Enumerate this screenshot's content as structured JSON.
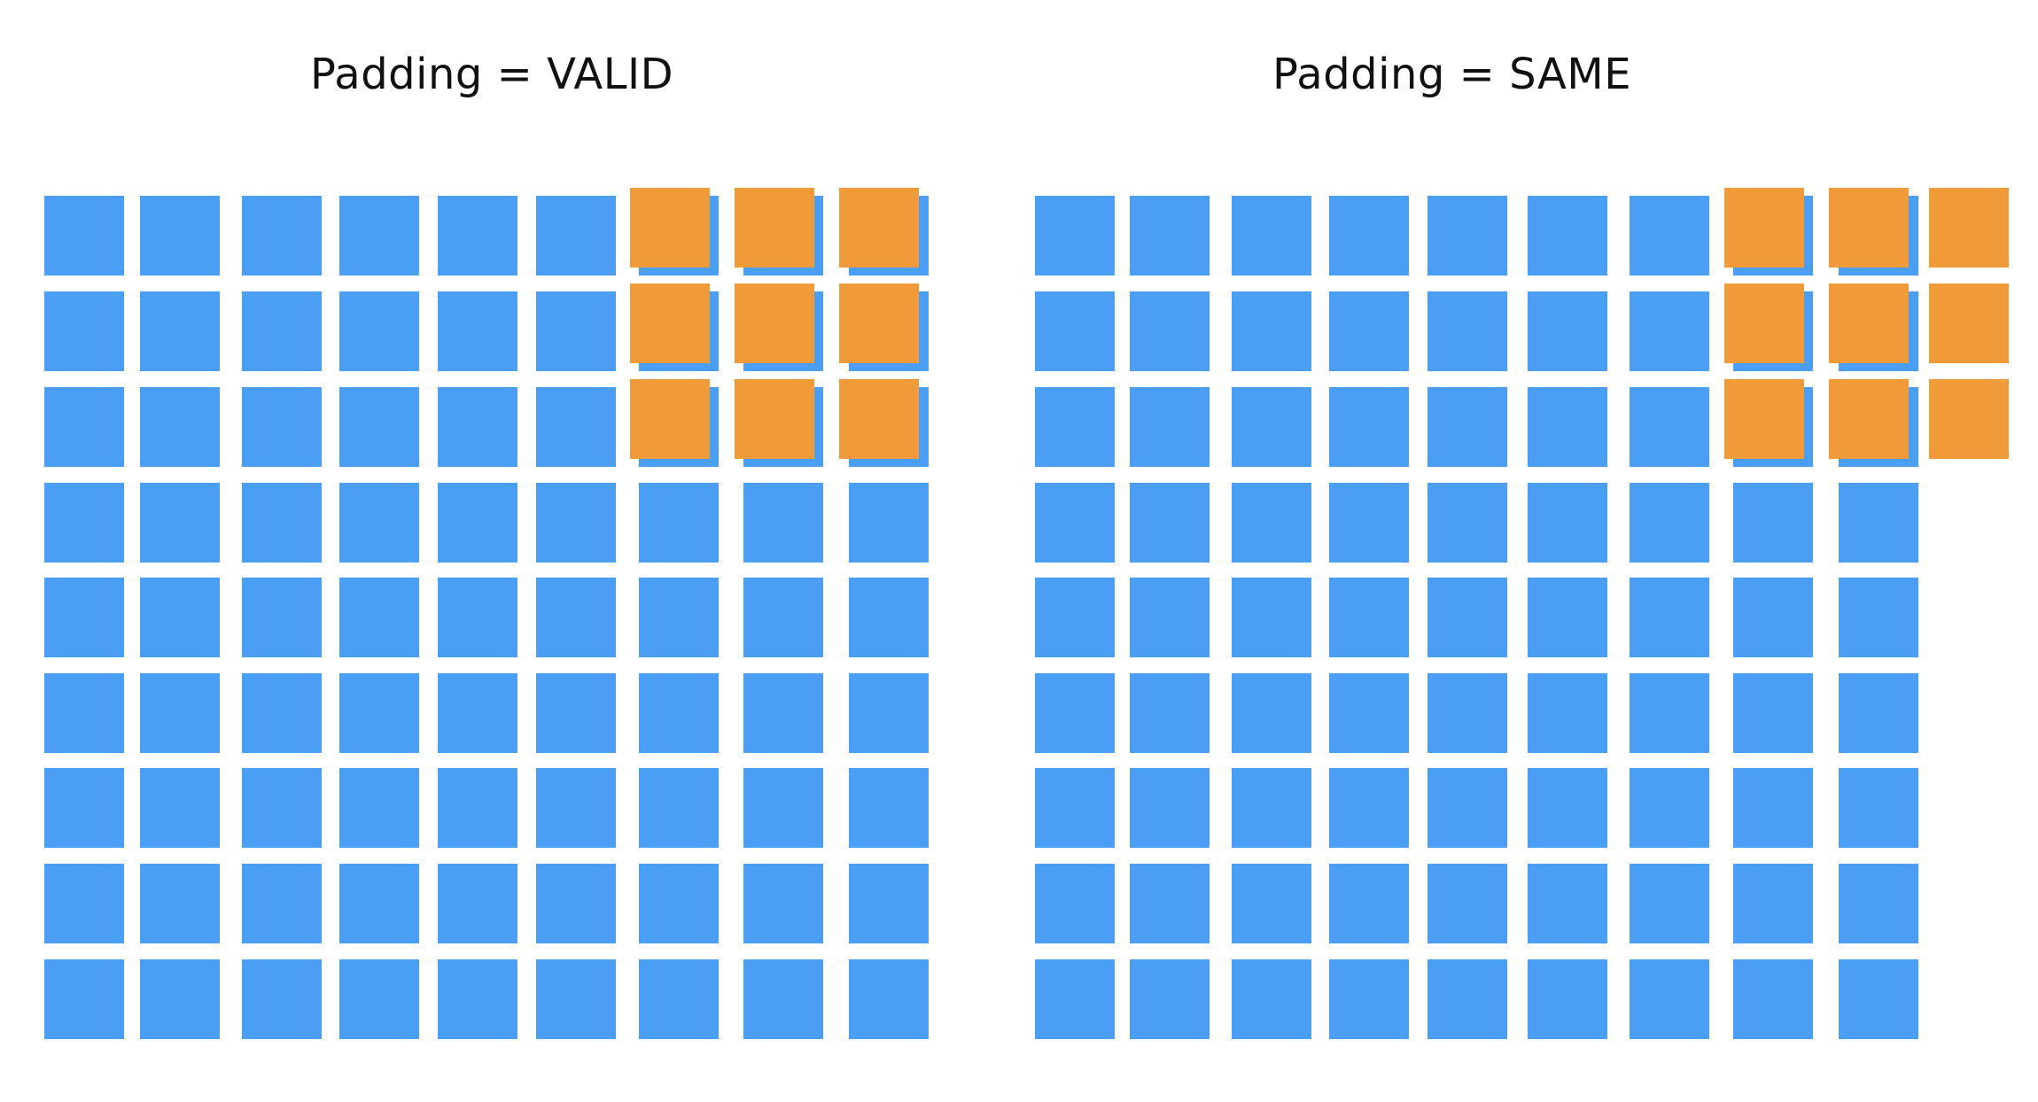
{
  "panels": [
    {
      "title": "Padding = VALID",
      "input": {
        "rows": 9,
        "cols": 9
      },
      "kernel": {
        "rows": 3,
        "cols": 3,
        "row_start": 0,
        "col_start": 6
      }
    },
    {
      "title": "Padding = SAME",
      "input": {
        "rows": 9,
        "cols": 9
      },
      "kernel": {
        "rows": 3,
        "cols": 3,
        "row_start": 0,
        "col_start": 7
      }
    }
  ],
  "colors": {
    "input_cell": "#4a9ff5",
    "kernel_cell": "#f09a3a",
    "background": "#ffffff"
  }
}
